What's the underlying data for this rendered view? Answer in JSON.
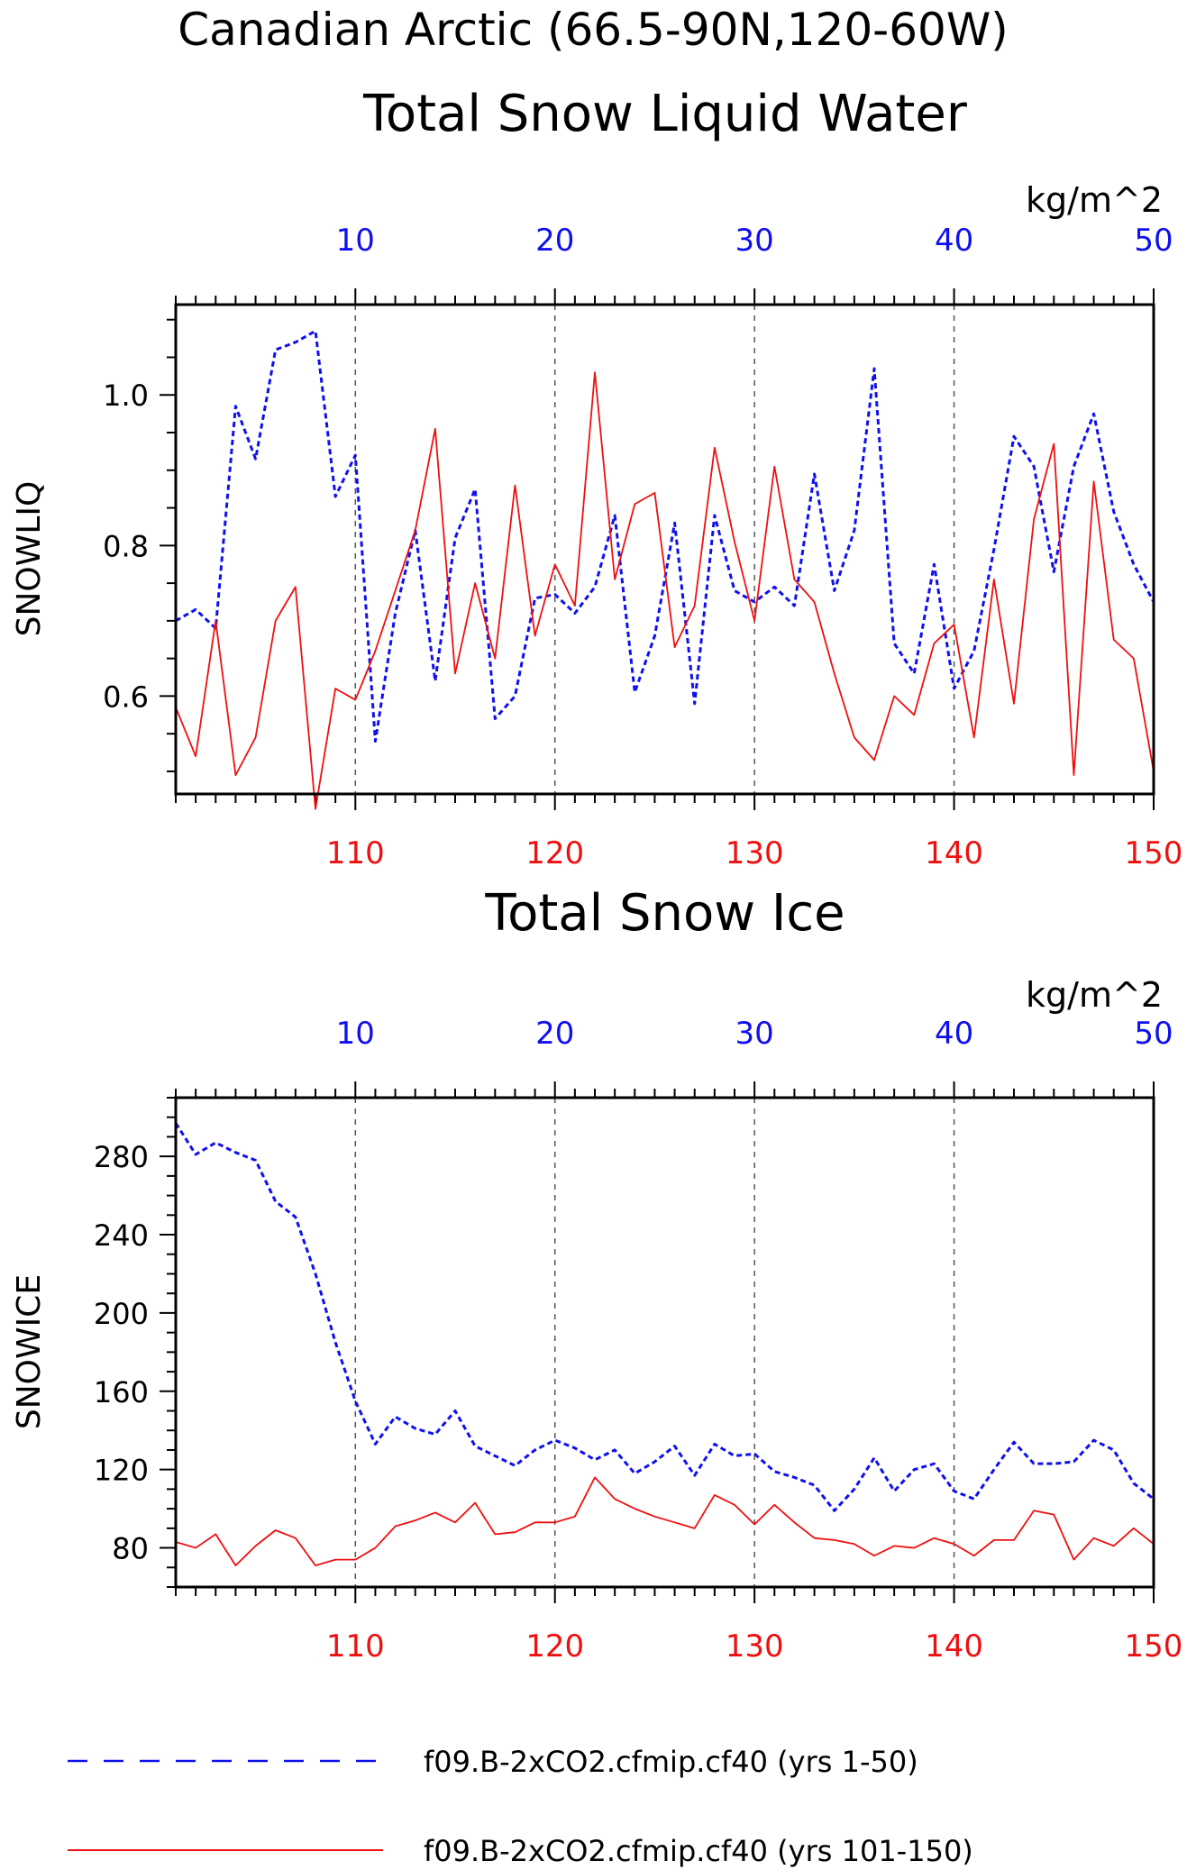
{
  "header": {
    "title": "Canadian Arctic (66.5-90N,120-60W)"
  },
  "units": "kg/m^2",
  "colors": {
    "blue": "#1010ee",
    "red": "#ee1010",
    "axis": "#000000",
    "grid": "#555555"
  },
  "legend": {
    "items": [
      {
        "label": "f09.B-2xCO2.cfmip.cf40 (yrs 1-50)",
        "color": "#1010ee",
        "dash": true
      },
      {
        "label": "f09.B-2xCO2.cfmip.cf40 (yrs 101-150)",
        "color": "#ee1010",
        "dash": false
      }
    ]
  },
  "chart_data": [
    {
      "type": "line",
      "title": "Total Snow Liquid Water",
      "ylabel": "SNOWLIQ",
      "units": "kg/m^2",
      "x_top": {
        "min": 1,
        "max": 50,
        "ticks": [
          10,
          20,
          30,
          40,
          50
        ]
      },
      "x_bottom": {
        "min": 101,
        "max": 150,
        "ticks": [
          110,
          120,
          130,
          140,
          150
        ]
      },
      "ylim": [
        0.47,
        1.12
      ],
      "yticks": [
        0.6,
        0.8,
        1.0
      ],
      "ytick_labels": [
        "0.6",
        "0.8",
        "1.0"
      ],
      "grid_x": [
        10,
        20,
        30,
        40
      ],
      "series": [
        {
          "name": "f09.B-2xCO2.cfmip.cf40 (yrs 1-50)",
          "axis": "top",
          "style": "dashed",
          "x": [
            1,
            2,
            3,
            4,
            5,
            6,
            7,
            8,
            9,
            10,
            11,
            12,
            13,
            14,
            15,
            16,
            17,
            18,
            19,
            20,
            21,
            22,
            23,
            24,
            25,
            26,
            27,
            28,
            29,
            30,
            31,
            32,
            33,
            34,
            35,
            36,
            37,
            38,
            39,
            40,
            41,
            42,
            43,
            44,
            45,
            46,
            47,
            48,
            49,
            50
          ],
          "values": [
            0.7,
            0.715,
            0.69,
            0.985,
            0.915,
            1.06,
            1.07,
            1.085,
            0.865,
            0.92,
            0.54,
            0.71,
            0.82,
            0.62,
            0.81,
            0.875,
            0.57,
            0.6,
            0.73,
            0.735,
            0.71,
            0.745,
            0.84,
            0.605,
            0.68,
            0.83,
            0.59,
            0.84,
            0.74,
            0.725,
            0.745,
            0.72,
            0.895,
            0.74,
            0.82,
            1.035,
            0.67,
            0.63,
            0.775,
            0.61,
            0.66,
            0.795,
            0.945,
            0.905,
            0.765,
            0.905,
            0.975,
            0.845,
            0.775,
            0.725
          ]
        },
        {
          "name": "f09.B-2xCO2.cfmip.cf40 (yrs 101-150)",
          "axis": "bottom",
          "style": "solid",
          "x": [
            101,
            102,
            103,
            104,
            105,
            106,
            107,
            108,
            109,
            110,
            111,
            112,
            113,
            114,
            115,
            116,
            117,
            118,
            119,
            120,
            121,
            122,
            123,
            124,
            125,
            126,
            127,
            128,
            129,
            130,
            131,
            132,
            133,
            134,
            135,
            136,
            137,
            138,
            139,
            140,
            141,
            142,
            143,
            144,
            145,
            146,
            147,
            148,
            149,
            150
          ],
          "values": [
            0.585,
            0.52,
            0.7,
            0.495,
            0.545,
            0.7,
            0.745,
            0.45,
            0.61,
            0.595,
            0.66,
            0.74,
            0.82,
            0.955,
            0.63,
            0.75,
            0.65,
            0.88,
            0.68,
            0.775,
            0.72,
            1.03,
            0.755,
            0.855,
            0.87,
            0.665,
            0.72,
            0.93,
            0.805,
            0.7,
            0.905,
            0.755,
            0.725,
            0.63,
            0.545,
            0.515,
            0.6,
            0.575,
            0.67,
            0.695,
            0.545,
            0.755,
            0.59,
            0.835,
            0.935,
            0.495,
            0.885,
            0.675,
            0.65,
            0.5
          ]
        }
      ]
    },
    {
      "type": "line",
      "title": "Total Snow Ice",
      "ylabel": "SNOWICE",
      "units": "kg/m^2",
      "x_top": {
        "min": 1,
        "max": 50,
        "ticks": [
          10,
          20,
          30,
          40,
          50
        ]
      },
      "x_bottom": {
        "min": 101,
        "max": 150,
        "ticks": [
          110,
          120,
          130,
          140,
          150
        ]
      },
      "ylim": [
        60,
        310
      ],
      "yticks": [
        80,
        120,
        160,
        200,
        240,
        280
      ],
      "ytick_labels": [
        "80",
        "120",
        "160",
        "200",
        "240",
        "280"
      ],
      "grid_x": [
        10,
        20,
        30,
        40
      ],
      "series": [
        {
          "name": "f09.B-2xCO2.cfmip.cf40 (yrs 1-50)",
          "axis": "top",
          "style": "dashed",
          "x": [
            1,
            2,
            3,
            4,
            5,
            6,
            7,
            8,
            9,
            10,
            11,
            12,
            13,
            14,
            15,
            16,
            17,
            18,
            19,
            20,
            21,
            22,
            23,
            24,
            25,
            26,
            27,
            28,
            29,
            30,
            31,
            32,
            33,
            34,
            35,
            36,
            37,
            38,
            39,
            40,
            41,
            42,
            43,
            44,
            45,
            46,
            47,
            48,
            49,
            50
          ],
          "values": [
            297,
            281,
            287,
            282,
            278,
            257,
            249,
            220,
            185,
            155,
            133,
            147,
            141,
            138,
            150,
            132,
            127,
            122,
            130,
            135,
            131,
            125,
            130,
            118,
            124,
            132,
            117,
            133,
            127,
            128,
            119,
            116,
            112,
            99,
            110,
            126,
            109,
            120,
            123,
            109,
            105,
            120,
            134,
            123,
            123,
            124,
            135,
            130,
            113,
            105
          ]
        },
        {
          "name": "f09.B-2xCO2.cfmip.cf40 (yrs 101-150)",
          "axis": "bottom",
          "style": "solid",
          "x": [
            101,
            102,
            103,
            104,
            105,
            106,
            107,
            108,
            109,
            110,
            111,
            112,
            113,
            114,
            115,
            116,
            117,
            118,
            119,
            120,
            121,
            122,
            123,
            124,
            125,
            126,
            127,
            128,
            129,
            130,
            131,
            132,
            133,
            134,
            135,
            136,
            137,
            138,
            139,
            140,
            141,
            142,
            143,
            144,
            145,
            146,
            147,
            148,
            149,
            150
          ],
          "values": [
            83,
            80,
            87,
            71,
            81,
            89,
            85,
            71,
            74,
            74,
            80,
            91,
            94,
            98,
            93,
            103,
            87,
            88,
            93,
            93,
            96,
            116,
            105,
            100,
            96,
            93,
            90,
            107,
            102,
            92,
            102,
            93,
            85,
            84,
            82,
            76,
            81,
            80,
            85,
            82,
            76,
            84,
            84,
            99,
            97,
            74,
            85,
            81,
            90,
            82
          ]
        }
      ]
    }
  ]
}
